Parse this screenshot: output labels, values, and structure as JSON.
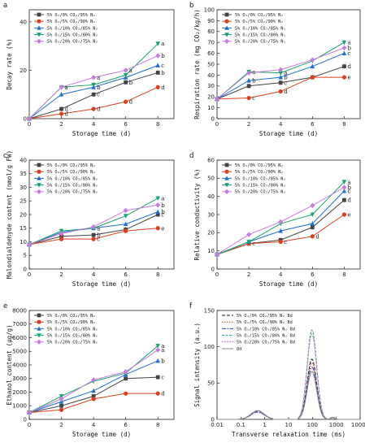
{
  "chart_data": [
    {
      "panel": "a",
      "type": "line",
      "xlabel": "Storage time (d)",
      "ylabel": "Decay rate (%)",
      "x": [
        0,
        2,
        4,
        6,
        8
      ],
      "xlim": [
        0,
        9
      ],
      "xticks": [
        0,
        2,
        4,
        6,
        8
      ],
      "ylim": [
        0,
        45
      ],
      "yticks": [
        0,
        20,
        40
      ],
      "series": [
        {
          "name": "5% O₂/0% CO₂/95% N₂",
          "color": "#444444",
          "marker": "square",
          "values": [
            0,
            4,
            10,
            15,
            19
          ],
          "letters": [
            "",
            "d",
            "c",
            "b",
            "b"
          ]
        },
        {
          "name": "5% O₂/5% CO₂/90% N₂",
          "color": "#d9411e",
          "marker": "circle",
          "values": [
            0,
            2,
            4,
            7,
            13
          ],
          "letters": [
            "",
            "d",
            "d",
            "d",
            "d"
          ]
        },
        {
          "name": "5% O₂/10% CO₂/85% N₂",
          "color": "#1f6fd1",
          "marker": "triangle",
          "values": [
            0,
            10,
            13,
            17,
            22
          ],
          "letters": [
            "",
            "",
            "b",
            "",
            "c"
          ]
        },
        {
          "name": "5% O₂/15% CO₂/80% N₂",
          "color": "#16a36b",
          "marker": "triangle-down",
          "values": [
            0,
            13,
            14,
            18,
            31
          ],
          "letters": [
            "",
            "a",
            "",
            "",
            "a"
          ]
        },
        {
          "name": "5% O₂/20% CO₂/75% N₂",
          "color": "#c77bdc",
          "marker": "diamond",
          "values": [
            0,
            13,
            17,
            20,
            26
          ],
          "letters": [
            "",
            "",
            "a",
            "a",
            "b"
          ]
        }
      ]
    },
    {
      "panel": "b",
      "type": "line",
      "xlabel": "Storage time (d)",
      "ylabel": "Respiration rate (mg CO₂/kg/h)",
      "x": [
        0,
        2,
        4,
        6,
        8
      ],
      "xlim": [
        0,
        9
      ],
      "xticks": [
        0,
        2,
        4,
        6,
        8
      ],
      "ylim": [
        0,
        100
      ],
      "yticks": [
        0,
        10,
        20,
        30,
        40,
        50,
        60,
        70,
        80,
        90,
        100
      ],
      "series": [
        {
          "name": "5% O₂/0% CO₂/95% N₂",
          "color": "#444444",
          "marker": "square",
          "values": [
            18,
            30,
            33,
            38,
            48
          ],
          "letters": [
            "",
            "",
            "c",
            "",
            "d"
          ]
        },
        {
          "name": "5% O₂/5% CO₂/90% N₂",
          "color": "#d9411e",
          "marker": "circle",
          "values": [
            18,
            19,
            25,
            38,
            38
          ],
          "letters": [
            "",
            "c",
            "d",
            "",
            "e"
          ]
        },
        {
          "name": "5% O₂/10% CO₂/85% N₂",
          "color": "#1f6fd1",
          "marker": "triangle",
          "values": [
            18,
            35,
            38,
            48,
            60
          ],
          "letters": [
            "",
            "b",
            "b",
            "",
            "c"
          ]
        },
        {
          "name": "5% O₂/15% CO₂/80% N₂",
          "color": "#16a36b",
          "marker": "triangle-down",
          "values": [
            18,
            43,
            42,
            53,
            70
          ],
          "letters": [
            "",
            "a",
            "a",
            "",
            "a"
          ]
        },
        {
          "name": "5% O₂/20% CO₂/75% N₂",
          "color": "#c77bdc",
          "marker": "diamond",
          "values": [
            18,
            42,
            45,
            54,
            65
          ],
          "letters": [
            "",
            "",
            "",
            "",
            "b"
          ]
        }
      ]
    },
    {
      "panel": "c",
      "type": "line",
      "xlabel": "Storage time (d)",
      "ylabel": "Malondialdehyde content (nmol/g FW)",
      "x": [
        0,
        2,
        4,
        6,
        8
      ],
      "xlim": [
        0,
        9
      ],
      "xticks": [
        0,
        2,
        4,
        6,
        8
      ],
      "ylim": [
        0,
        40
      ],
      "yticks": [
        0,
        5,
        10,
        15,
        20,
        25,
        30,
        35,
        40
      ],
      "series": [
        {
          "name": "5% O₂/0% CO₂/95% N₂",
          "color": "#444444",
          "marker": "square",
          "values": [
            9,
            12,
            12.5,
            14.5,
            20
          ],
          "letters": [
            "",
            "",
            "b",
            "",
            "c"
          ]
        },
        {
          "name": "5% O₂/5% CO₂/90% N₂",
          "color": "#d9411e",
          "marker": "circle",
          "values": [
            9,
            11,
            11,
            14,
            15
          ],
          "letters": [
            "",
            "",
            "c",
            "",
            "e"
          ]
        },
        {
          "name": "5% O₂/10% CO₂/85% N₂",
          "color": "#1f6fd1",
          "marker": "triangle",
          "values": [
            9,
            13.5,
            15,
            16.5,
            21
          ],
          "letters": [
            "",
            "",
            "",
            "",
            "b"
          ]
        },
        {
          "name": "5% O₂/15% CO₂/80% N₂",
          "color": "#16a36b",
          "marker": "triangle-down",
          "values": [
            9,
            14,
            15,
            19.5,
            26
          ],
          "letters": [
            "",
            "",
            "a",
            "",
            "a"
          ]
        },
        {
          "name": "5% O₂/20% CO₂/75% N₂",
          "color": "#c77bdc",
          "marker": "diamond",
          "values": [
            9,
            13,
            15.5,
            21.5,
            23.5
          ],
          "letters": [
            "",
            "",
            "",
            "",
            "b"
          ]
        }
      ]
    },
    {
      "panel": "d",
      "type": "line",
      "xlabel": "Storage time (d)",
      "ylabel": "Relative conductivity (%)",
      "x": [
        0,
        2,
        4,
        6,
        8
      ],
      "xlim": [
        0,
        9
      ],
      "xticks": [
        0,
        2,
        4,
        6,
        8
      ],
      "ylim": [
        0,
        60
      ],
      "yticks": [
        0,
        10,
        20,
        30,
        40,
        50,
        60
      ],
      "series": [
        {
          "name": "5% O₂/0% CO₂/95% N₂",
          "color": "#444444",
          "marker": "square",
          "values": [
            8,
            14,
            16,
            23,
            38
          ],
          "letters": [
            "",
            "",
            "",
            "",
            "d"
          ]
        },
        {
          "name": "5% O₂/5% CO₂/90% N₂",
          "color": "#d9411e",
          "marker": "circle",
          "values": [
            8,
            14,
            15,
            18,
            30
          ],
          "letters": [
            "",
            "c",
            "c",
            "d",
            "e"
          ]
        },
        {
          "name": "5% O₂/10% CO₂/85% N₂",
          "color": "#1f6fd1",
          "marker": "triangle",
          "values": [
            8,
            15,
            21,
            25,
            43
          ],
          "letters": [
            "",
            "",
            "",
            "",
            "c"
          ]
        },
        {
          "name": "5% O₂/15% CO₂/80% N₂",
          "color": "#16a36b",
          "marker": "triangle-down",
          "values": [
            8,
            15,
            25,
            30,
            48
          ],
          "letters": [
            "",
            "",
            "",
            "",
            "a"
          ]
        },
        {
          "name": "5% O₂/20% CO₂/75% N₂",
          "color": "#c77bdc",
          "marker": "diamond",
          "values": [
            8,
            19,
            26,
            35,
            45
          ],
          "letters": [
            "",
            "",
            "",
            "",
            "b"
          ]
        }
      ]
    },
    {
      "panel": "e",
      "type": "line",
      "xlabel": "Storage time (d)",
      "ylabel": "Ethanol content (μg/g)",
      "x": [
        0,
        2,
        4,
        6,
        8
      ],
      "xlim": [
        0,
        9
      ],
      "xticks": [
        0,
        2,
        4,
        6,
        8
      ],
      "ylim": [
        0,
        8000
      ],
      "yticks": [
        0,
        1000,
        2000,
        3000,
        4000,
        5000,
        6000,
        7000,
        8000
      ],
      "series": [
        {
          "name": "5% O₂/0% CO₂/95% N₂",
          "color": "#444444",
          "marker": "square",
          "values": [
            500,
            1000,
            1700,
            3000,
            3100
          ],
          "letters": [
            "",
            "",
            "",
            "",
            "c"
          ]
        },
        {
          "name": "5% O₂/5% CO₂/90% N₂",
          "color": "#d9411e",
          "marker": "circle",
          "values": [
            500,
            700,
            1500,
            1900,
            1900
          ],
          "letters": [
            "",
            "",
            "",
            "",
            "d"
          ]
        },
        {
          "name": "5% O₂/10% CO₂/85% N₂",
          "color": "#1f6fd1",
          "marker": "triangle",
          "values": [
            500,
            1300,
            2100,
            3300,
            4300
          ],
          "letters": [
            "",
            "",
            "",
            "",
            "b"
          ]
        },
        {
          "name": "5% O₂/15% CO₂/80% N₂",
          "color": "#16a36b",
          "marker": "triangle-down",
          "values": [
            500,
            1700,
            2800,
            3400,
            5400
          ],
          "letters": [
            "",
            "",
            "",
            "",
            "a"
          ]
        },
        {
          "name": "5% O₂/20% CO₂/75% N₂",
          "color": "#c77bdc",
          "marker": "diamond",
          "values": [
            500,
            1500,
            2900,
            3500,
            5100
          ],
          "letters": [
            "",
            "",
            "",
            "",
            "a"
          ]
        }
      ]
    },
    {
      "panel": "f",
      "type": "line",
      "xscale": "log",
      "xlabel": "Transverse relaxation time (ms)",
      "ylabel": "Signal intensity (a.u.)",
      "xlim": [
        0.01,
        10000
      ],
      "xticks": [
        0.01,
        0.1,
        1,
        10,
        100,
        1000,
        10000
      ],
      "xtick_labels": [
        "0.01",
        "0.1",
        "1",
        "10",
        "100",
        "1000",
        "10000"
      ],
      "ylim": [
        0,
        150
      ],
      "yticks": [
        0,
        50,
        100,
        150
      ],
      "series": [
        {
          "name": "5% O₂/0% CO₂/95% N₂ 8d",
          "color": "#111111",
          "dash": "4,2",
          "minor_peak": 11,
          "major_peak": 83
        },
        {
          "name": "5% O₂/5% CO₂/90% N₂ 8d",
          "color": "#d9411e",
          "dash": "1.5,1.5",
          "minor_peak": 10,
          "major_peak": 78
        },
        {
          "name": "5% O₂/10% CO₂/85% N₂ 8d",
          "color": "#1f3fd1",
          "dash": "5,1.5,1.5,1.5",
          "minor_peak": 10,
          "major_peak": 72
        },
        {
          "name": "5% O₂/15% CO₂/80% N₂ 8d",
          "color": "#16a36b",
          "dash": "3,1.5",
          "minor_peak": 12,
          "major_peak": 123
        },
        {
          "name": "5% O₂/20% CO₂/75% N₂ 8d",
          "color": "#c77bdc",
          "dash": "2,1",
          "minor_peak": 11,
          "major_peak": 117
        },
        {
          "name": "0d",
          "color": "#888888",
          "dash": "",
          "minor_peak": 12,
          "major_peak": 66
        }
      ]
    }
  ]
}
